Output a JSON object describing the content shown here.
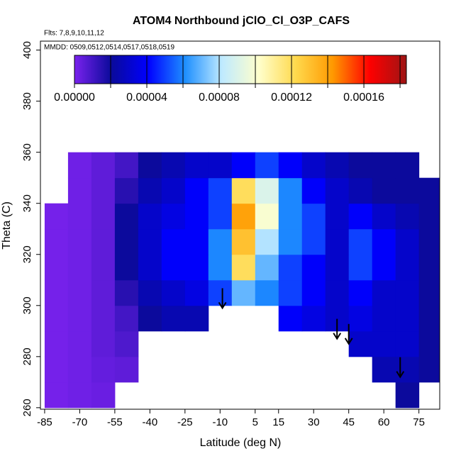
{
  "chart_data": {
    "type": "heatmap",
    "title": "ATOM4 Northbound jClO_Cl_O3P_CAFS",
    "subtitle": "Flts: 7,8,9,10,11,12",
    "annotation": "MMDD: 0509,0512,0514,0517,0518,0519",
    "xlabel": "Latitude (deg N)",
    "ylabel": "Theta (C)",
    "xlim": [
      -86.8,
      83.9
    ],
    "ylim": [
      259.4,
      403.5
    ],
    "xticks": [
      -85,
      -70,
      -55,
      -40,
      -25,
      -10,
      5,
      15,
      30,
      45,
      60,
      75
    ],
    "yticks": [
      260,
      280,
      300,
      320,
      340,
      360,
      380,
      400
    ],
    "zlim": [
      0,
      0.0001835
    ],
    "zticks": [
      {
        "value": 0,
        "label": "0.00000"
      },
      {
        "value": 4e-05,
        "label": "0.00004"
      },
      {
        "value": 8e-05,
        "label": "0.00008"
      },
      {
        "value": 0.00012,
        "label": "0.00012"
      },
      {
        "value": 0.00016,
        "label": "0.00016"
      }
    ],
    "zbreaks": [
      2e-05,
      6e-05,
      0.0001,
      0.00014,
      0.00018
    ],
    "colors": [
      "#7a22ee",
      "#0a0a9a",
      "#0000ff",
      "#1e8fff",
      "#bfeaff",
      "#ffffcc",
      "#ffd94d",
      "#ff9900",
      "#ff0000",
      "#9e1414"
    ],
    "x": [
      -80,
      -70,
      -60,
      -50,
      -40,
      -30,
      -20,
      -10,
      0,
      10,
      20,
      30,
      40,
      50,
      60,
      70,
      80
    ],
    "y": [
      265,
      275,
      285,
      295,
      305,
      315,
      325,
      335,
      345,
      355
    ],
    "z": [
      [
        1e-06,
        2e-06,
        3e-06,
        null,
        null,
        null,
        null,
        null,
        null,
        null,
        null,
        null,
        null,
        null,
        null,
        2e-05,
        null
      ],
      [
        1e-06,
        2e-06,
        4e-06,
        5e-06,
        null,
        null,
        null,
        null,
        null,
        null,
        null,
        null,
        null,
        null,
        2.5e-05,
        2.5e-05,
        2e-05
      ],
      [
        1e-06,
        2e-06,
        5e-06,
        8e-06,
        null,
        null,
        null,
        null,
        null,
        null,
        null,
        null,
        null,
        3e-05,
        3e-05,
        3e-05,
        2e-05
      ],
      [
        1e-06,
        2e-06,
        5e-06,
        1e-05,
        2e-05,
        2.5e-05,
        2.5e-05,
        null,
        null,
        null,
        4e-05,
        3.5e-05,
        3e-05,
        3.5e-05,
        3e-05,
        3e-05,
        2e-05
      ],
      [
        1e-06,
        2e-06,
        5e-06,
        1.5e-05,
        2.5e-05,
        3e-05,
        3.5e-05,
        5e-05,
        7e-05,
        6e-05,
        5e-05,
        4e-05,
        3e-05,
        4e-05,
        3e-05,
        3e-05,
        2e-05
      ],
      [
        1e-06,
        2e-06,
        5e-06,
        2e-05,
        3e-05,
        4e-05,
        4e-05,
        6e-05,
        0.00012,
        7e-05,
        5e-05,
        4e-05,
        3e-05,
        5e-05,
        4e-05,
        3e-05,
        2e-05
      ],
      [
        1e-06,
        2e-06,
        5e-06,
        2e-05,
        3e-05,
        4e-05,
        4e-05,
        6e-05,
        0.00013,
        8e-05,
        6e-05,
        5e-05,
        3e-05,
        5e-05,
        4e-05,
        3e-05,
        2e-05
      ],
      [
        1e-06,
        2e-06,
        5e-06,
        2e-05,
        3e-05,
        3.5e-05,
        4e-05,
        5e-05,
        0.00014,
        0.0001,
        6e-05,
        5e-05,
        3e-05,
        4e-05,
        3e-05,
        2.5e-05,
        2e-05
      ],
      [
        null,
        2e-06,
        5e-06,
        1.5e-05,
        2.5e-05,
        3e-05,
        4e-05,
        5e-05,
        0.00012,
        9e-05,
        6e-05,
        4e-05,
        3e-05,
        2.5e-05,
        2e-05,
        2e-05,
        2e-05
      ],
      [
        null,
        2e-06,
        5e-06,
        1e-05,
        2e-05,
        2.5e-05,
        3e-05,
        3e-05,
        4e-05,
        5e-05,
        4e-05,
        3e-05,
        2.5e-05,
        2e-05,
        2e-05,
        2e-05,
        null
      ]
    ],
    "arrows": {
      "x": [
        -9,
        40,
        45,
        67
      ],
      "y": [
        299,
        287,
        285,
        272
      ]
    }
  }
}
